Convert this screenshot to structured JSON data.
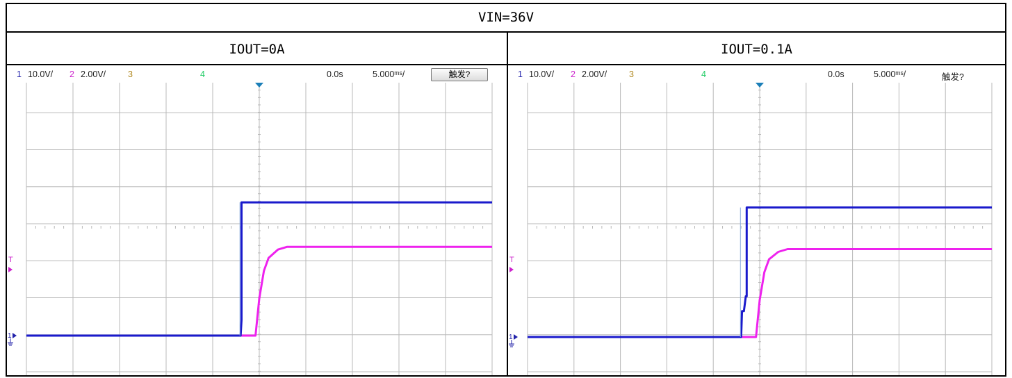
{
  "table": {
    "title": "VIN=36V",
    "panels": [
      {
        "label": "IOUT=0A",
        "header": {
          "ch1_num": "1",
          "ch1_scale": "10.0V/",
          "ch2_num": "2",
          "ch2_scale": "2.00V/",
          "ch3_num": "3",
          "ch4_num": "4",
          "time_pos": "0.0s",
          "time_scale": "5.000ᵐˢ/",
          "trigger": "触发?"
        },
        "has_trigger_button": true,
        "left_markers": {
          "trigger": "T",
          "ground": "1"
        }
      },
      {
        "label": "IOUT=0.1A",
        "header": {
          "ch1_num": "1",
          "ch1_scale": "10.0V/",
          "ch2_num": "2",
          "ch2_scale": "2.00V/",
          "ch3_num": "3",
          "ch4_num": "4",
          "time_pos": "0.0s",
          "time_scale": "5.000ᵐˢ/",
          "trigger": "触发?"
        },
        "has_trigger_button": false,
        "left_markers": {
          "trigger": "T",
          "ground": "1"
        }
      }
    ]
  },
  "colors": {
    "ch1": "#1a1acc",
    "ch2": "#ee22ee",
    "ch3": "#b08820",
    "ch4": "#22cc66",
    "grid": "#b8b8b8",
    "trigger_marker": "#1c7fb8"
  },
  "chart_data": [
    {
      "type": "line",
      "x_unit": "ms",
      "xlim": [
        -25,
        25
      ],
      "grid": "10 x 8 divisions",
      "series": [
        {
          "name": "1",
          "scale": "10.0V/div",
          "x": [
            -25,
            -2.0,
            -1.9,
            -1.9,
            25
          ],
          "y": [
            0,
            0,
            4.2,
            36,
            36
          ]
        },
        {
          "name": "2",
          "scale": "2.00V/div",
          "x": [
            -25,
            -0.4,
            0.0,
            0.5,
            1.0,
            2.0,
            3.0,
            25
          ],
          "y": [
            0,
            0,
            2.0,
            3.5,
            4.2,
            4.65,
            4.8,
            4.8
          ]
        }
      ]
    },
    {
      "type": "line",
      "x_unit": "ms",
      "xlim": [
        -25,
        25
      ],
      "grid": "10 x 8 divisions",
      "series": [
        {
          "name": "1",
          "scale": "10.0V/div",
          "x": [
            -25,
            -2.0,
            -1.9,
            -1.7,
            -1.5,
            -1.4,
            -1.4,
            25
          ],
          "y": [
            0,
            0,
            7,
            7,
            11,
            11,
            35,
            35
          ]
        },
        {
          "name": "2",
          "scale": "2.00V/div",
          "x": [
            -25,
            -0.4,
            0.0,
            0.5,
            1.0,
            2.0,
            3.0,
            25
          ],
          "y": [
            0,
            0,
            2.0,
            3.5,
            4.2,
            4.6,
            4.75,
            4.75
          ]
        }
      ]
    }
  ]
}
